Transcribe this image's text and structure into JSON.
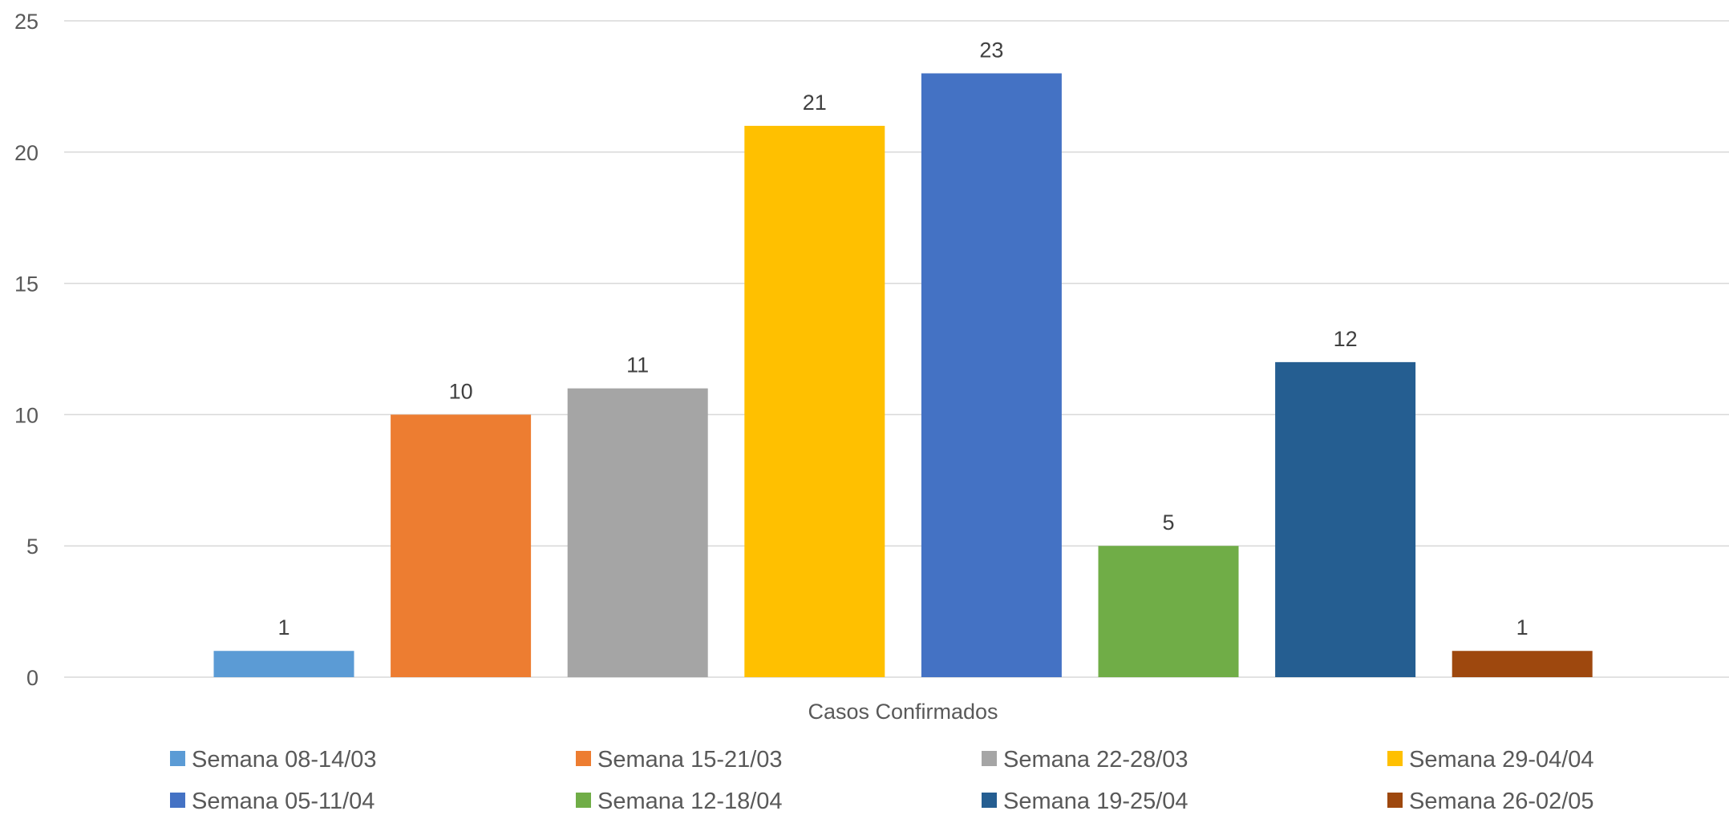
{
  "chart_data": {
    "type": "bar",
    "xlabel": "Casos Confirmados",
    "ylabel": "",
    "ylim": [
      0,
      25
    ],
    "yticks": [
      0,
      5,
      10,
      15,
      20,
      25
    ],
    "grid": true,
    "legend_position": "bottom",
    "categories": [
      "Casos Confirmados"
    ],
    "series": [
      {
        "name": "Semana 08-14/03",
        "value": 1,
        "color": "#5b9bd5"
      },
      {
        "name": "Semana 15-21/03",
        "value": 10,
        "color": "#ed7d31"
      },
      {
        "name": "Semana 22-28/03",
        "value": 11,
        "color": "#a5a5a5"
      },
      {
        "name": "Semana 29-04/04",
        "value": 21,
        "color": "#ffc000"
      },
      {
        "name": "Semana 05-11/04",
        "value": 23,
        "color": "#4472c4"
      },
      {
        "name": "Semana 12-18/04",
        "value": 5,
        "color": "#70ad47"
      },
      {
        "name": "Semana 19-25/04",
        "value": 12,
        "color": "#255e91"
      },
      {
        "name": "Semana 26-02/05",
        "value": 1,
        "color": "#9e480e"
      }
    ]
  }
}
